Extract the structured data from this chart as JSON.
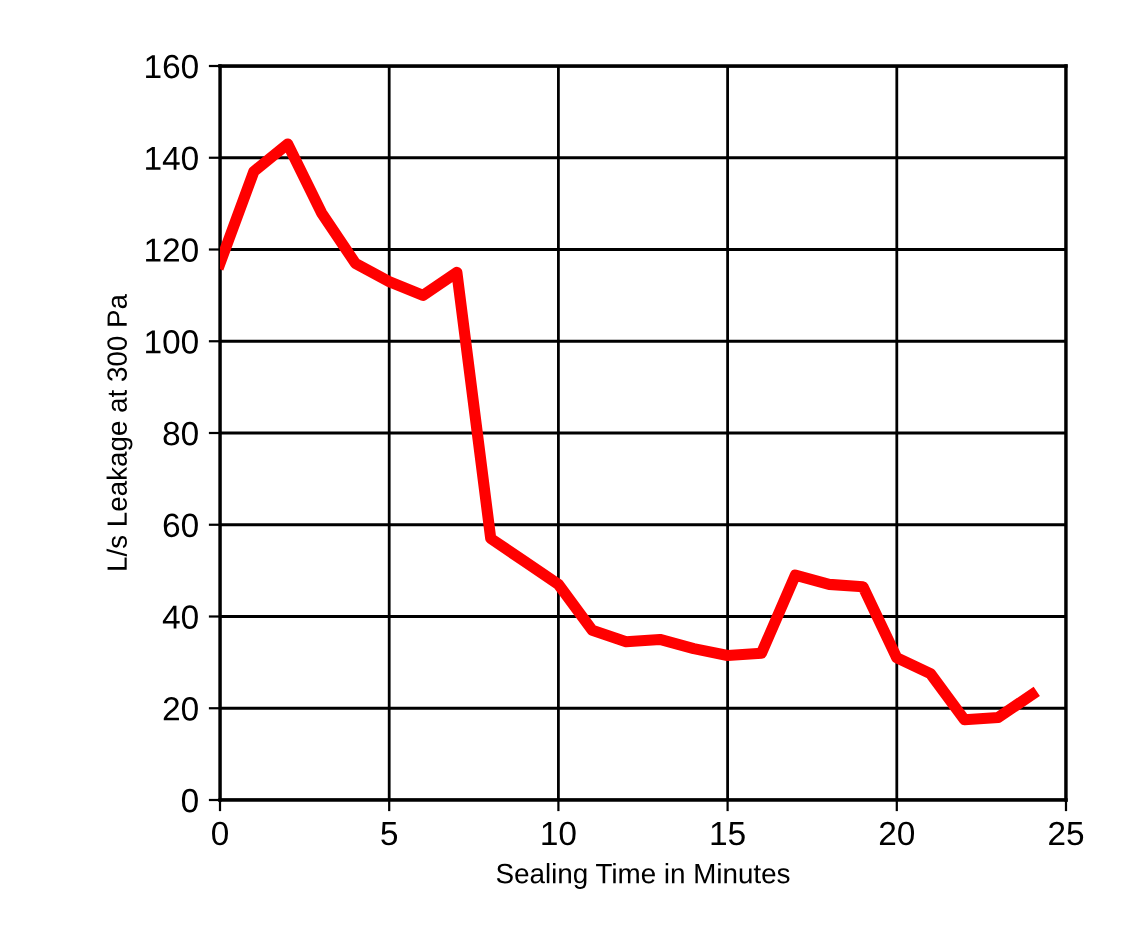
{
  "chart_data": {
    "type": "line",
    "xlabel": "Sealing Time in Minutes",
    "ylabel": "L/s Leakage at 300 Pa",
    "x": [
      0,
      1,
      2,
      3,
      4,
      5,
      6,
      7,
      8,
      9,
      10,
      11,
      12,
      13,
      14,
      15,
      16,
      17,
      18,
      19,
      20,
      21,
      22,
      23,
      24
    ],
    "series": [
      {
        "color": "#ff0000",
        "values": [
          117,
          137,
          143,
          128,
          117,
          113,
          110,
          115,
          57,
          52,
          47,
          37,
          34.5,
          35,
          33,
          31.5,
          32,
          49,
          47,
          46.5,
          31,
          27.5,
          17.5,
          18,
          23
        ]
      }
    ],
    "xlim": [
      0,
      25
    ],
    "xticks": [
      0,
      5,
      10,
      15,
      20,
      25
    ],
    "ylim": [
      0,
      160
    ],
    "yticks": [
      0,
      20,
      40,
      60,
      80,
      100,
      120,
      140,
      160
    ],
    "grid": true,
    "marker": "none",
    "line_style": "solid"
  }
}
